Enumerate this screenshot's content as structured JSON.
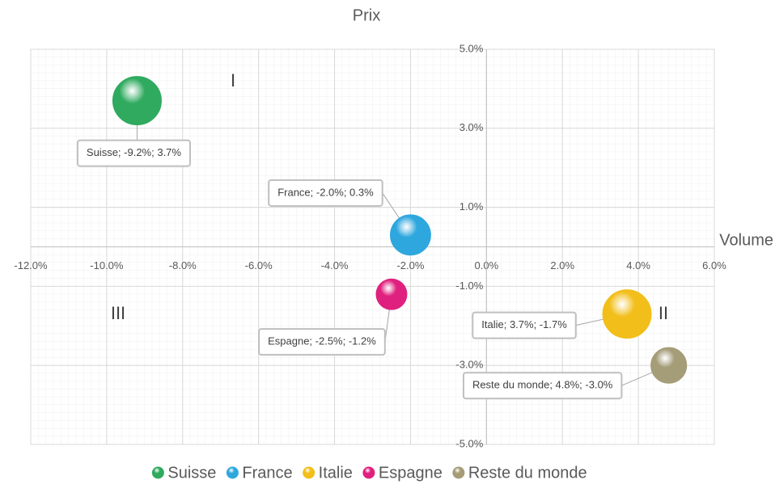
{
  "chart_data": {
    "type": "bubble",
    "title": "Prix",
    "x_label": "Volume",
    "xlim": [
      -12,
      6
    ],
    "ylim": [
      -5,
      5
    ],
    "xticks": [
      {
        "value": -12,
        "label": "-12.0%"
      },
      {
        "value": -10,
        "label": "-10.0%"
      },
      {
        "value": -8,
        "label": "-8.0%"
      },
      {
        "value": -6,
        "label": "-6.0%"
      },
      {
        "value": -4,
        "label": "-4.0%"
      },
      {
        "value": -2,
        "label": "-2.0%"
      },
      {
        "value": 0,
        "label": "0.0%"
      },
      {
        "value": 2,
        "label": "2.0%"
      },
      {
        "value": 4,
        "label": "4.0%"
      },
      {
        "value": 6,
        "label": "6.0%"
      }
    ],
    "yticks": [
      {
        "value": 5,
        "label": "5.0%"
      },
      {
        "value": 3,
        "label": "3.0%"
      },
      {
        "value": 1,
        "label": "1.0%"
      },
      {
        "value": -1,
        "label": "-1.0%"
      },
      {
        "value": -3,
        "label": "-3.0%"
      },
      {
        "value": -5,
        "label": "-5.0%"
      }
    ],
    "grid": true,
    "legend": "bottom",
    "annotations": [
      "I",
      "II",
      "III"
    ],
    "series": [
      {
        "name": "Suisse",
        "color": "#2faa5e",
        "x": [
          -9.2
        ],
        "values": [
          3.7
        ],
        "sizes": [
          100
        ],
        "value_labels": [
          "Suisse; -9.2%; 3.7%"
        ]
      },
      {
        "name": "France",
        "color": "#2ea7de",
        "x": [
          -2.0
        ],
        "values": [
          0.3
        ],
        "sizes": [
          69
        ],
        "value_labels": [
          "France; -2.0%; 0.3%"
        ]
      },
      {
        "name": "Italie",
        "color": "#f2be1a",
        "x": [
          3.7
        ],
        "values": [
          -1.7
        ],
        "sizes": [
          100
        ],
        "value_labels": [
          "Italie; 3.7%; -1.7%"
        ]
      },
      {
        "name": "Espagne",
        "color": "#e0207e",
        "x": [
          -2.5
        ],
        "values": [
          -1.2
        ],
        "sizes": [
          40
        ],
        "value_labels": [
          "Espagne; -2.5%; -1.2%"
        ]
      },
      {
        "name": "Reste du monde",
        "color": "#a59c78",
        "x": [
          4.8
        ],
        "values": [
          -3.0
        ],
        "sizes": [
          54
        ],
        "value_labels": [
          "Reste du monde; 4.8%; -3.0%"
        ]
      }
    ]
  }
}
